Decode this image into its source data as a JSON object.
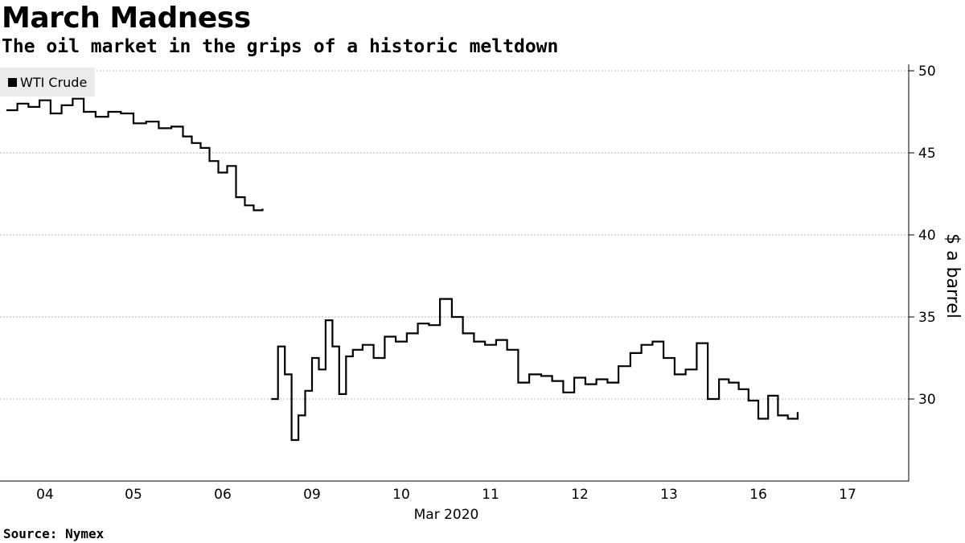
{
  "header": {
    "title": "March Madness",
    "subtitle": "The oil market in the grips of a historic meltdown"
  },
  "footer": {
    "source": "Source: Nymex"
  },
  "colors": {
    "line": "#000000",
    "grid": "#b5b5b5",
    "legend_bg": "#ebebeb"
  },
  "chart_data": {
    "type": "line",
    "title": "March Madness",
    "subtitle": "The oil market in the grips of a historic meltdown",
    "xlabel": "Mar 2020",
    "ylabel": "$ a barrel",
    "ylim": [
      25,
      50
    ],
    "yticks": [
      30,
      35,
      40,
      45,
      50
    ],
    "grid": true,
    "legend_position": "top-left",
    "x_categories": [
      "04",
      "05",
      "06",
      "09",
      "10",
      "11",
      "12",
      "13",
      "16",
      "17"
    ],
    "series": [
      {
        "name": "WTI Crude",
        "segments": [
          {
            "points": [
              [
                "04",
                47.6
              ],
              [
                "04",
                48.0
              ],
              [
                "04",
                47.8
              ],
              [
                "04",
                48.2
              ],
              [
                "04",
                47.4
              ],
              [
                "04",
                47.9
              ],
              [
                "04",
                48.3
              ],
              [
                "04",
                47.5
              ],
              [
                "05",
                47.2
              ],
              [
                "05",
                47.5
              ],
              [
                "05",
                47.4
              ],
              [
                "05",
                46.8
              ],
              [
                "05",
                46.9
              ],
              [
                "05",
                46.5
              ],
              [
                "05",
                46.6
              ],
              [
                "06",
                46.0
              ],
              [
                "06",
                45.6
              ],
              [
                "06",
                45.3
              ],
              [
                "06",
                44.5
              ],
              [
                "06",
                43.8
              ],
              [
                "06",
                44.2
              ],
              [
                "06",
                42.3
              ],
              [
                "06",
                41.8
              ],
              [
                "06",
                41.5
              ],
              [
                "06",
                41.6
              ]
            ]
          },
          {
            "points": [
              [
                "09",
                30.0
              ],
              [
                "09",
                33.2
              ],
              [
                "09",
                31.5
              ],
              [
                "09",
                27.5
              ],
              [
                "09",
                29.0
              ],
              [
                "09",
                30.5
              ],
              [
                "09",
                32.5
              ],
              [
                "09",
                31.8
              ],
              [
                "09",
                34.8
              ],
              [
                "09",
                33.2
              ],
              [
                "09",
                30.3
              ],
              [
                "09",
                32.6
              ],
              [
                "09",
                33.0
              ],
              [
                "10",
                33.3
              ],
              [
                "10",
                32.5
              ],
              [
                "10",
                33.8
              ],
              [
                "10",
                33.5
              ],
              [
                "10",
                34.0
              ],
              [
                "10",
                34.6
              ],
              [
                "10",
                34.5
              ],
              [
                "10",
                36.1
              ],
              [
                "11",
                35.0
              ],
              [
                "11",
                34.0
              ],
              [
                "11",
                33.5
              ],
              [
                "11",
                33.3
              ],
              [
                "11",
                33.6
              ],
              [
                "11",
                33.0
              ],
              [
                "11",
                31.0
              ],
              [
                "11",
                31.5
              ],
              [
                "12",
                31.4
              ],
              [
                "12",
                31.1
              ],
              [
                "12",
                30.4
              ],
              [
                "12",
                31.3
              ],
              [
                "12",
                30.9
              ],
              [
                "12",
                31.2
              ],
              [
                "12",
                31.0
              ],
              [
                "12",
                32.0
              ],
              [
                "13",
                32.8
              ],
              [
                "13",
                33.3
              ],
              [
                "13",
                33.5
              ],
              [
                "13",
                32.5
              ],
              [
                "13",
                31.5
              ],
              [
                "13",
                31.8
              ],
              [
                "13",
                33.4
              ],
              [
                "13",
                30.0
              ],
              [
                "16",
                31.2
              ],
              [
                "16",
                31.0
              ],
              [
                "16",
                30.6
              ],
              [
                "16",
                29.9
              ],
              [
                "16",
                28.8
              ],
              [
                "16",
                30.2
              ],
              [
                "16",
                29.0
              ],
              [
                "16",
                28.8
              ],
              [
                "16",
                29.2
              ]
            ]
          }
        ]
      }
    ]
  }
}
